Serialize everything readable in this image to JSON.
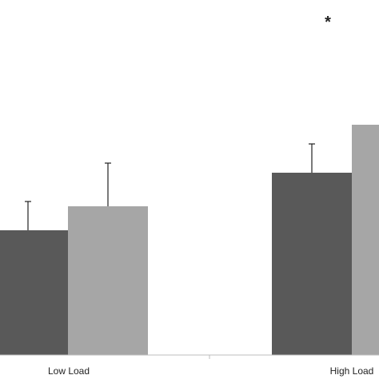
{
  "chart_data": {
    "type": "bar",
    "categories": [
      "Low Load",
      "High Load"
    ],
    "series": [
      {
        "values": [
          2.6,
          3.8
        ],
        "errors": [
          0.6,
          0.6
        ]
      },
      {
        "values": [
          3.1,
          4.8
        ],
        "errors": [
          0.9,
          0.0
        ]
      }
    ],
    "colors": [
      "#595959",
      "#a6a6a6"
    ],
    "annotations": [
      {
        "text": "*",
        "category": "High Load"
      }
    ],
    "title": "",
    "xlabel": "",
    "ylabel": "",
    "ylim": [
      0,
      6.0
    ],
    "grid": false,
    "legend": "none"
  }
}
